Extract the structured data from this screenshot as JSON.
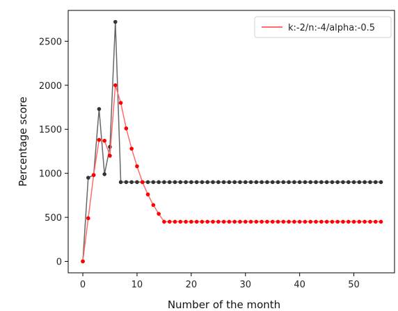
{
  "chart_data": {
    "type": "line",
    "title": "",
    "xlabel": "Number of the month",
    "ylabel": "Percentage score",
    "xlim": [
      -2.7,
      57.5
    ],
    "ylim": [
      -130,
      2850
    ],
    "xticks": [
      0,
      10,
      20,
      30,
      40,
      50
    ],
    "yticks": [
      0,
      500,
      1000,
      1500,
      2000,
      2500
    ],
    "grid": false,
    "legend_position": "top-right",
    "series": [
      {
        "name": "",
        "color": "#666666",
        "marker_color": "#333333",
        "x": [
          0,
          1,
          2,
          3,
          4,
          5,
          6,
          7,
          8,
          9,
          10,
          11,
          12,
          13,
          14,
          15,
          16,
          17,
          18,
          19,
          20,
          21,
          22,
          23,
          24,
          25,
          26,
          27,
          28,
          29,
          30,
          31,
          32,
          33,
          34,
          35,
          36,
          37,
          38,
          39,
          40,
          41,
          42,
          43,
          44,
          45,
          46,
          47,
          48,
          49,
          50,
          51,
          52,
          53,
          54,
          55
        ],
        "y": [
          0,
          950,
          980,
          1730,
          990,
          1300,
          2720,
          900,
          900,
          900,
          900,
          900,
          900,
          900,
          900,
          900,
          900,
          900,
          900,
          900,
          900,
          900,
          900,
          900,
          900,
          900,
          900,
          900,
          900,
          900,
          900,
          900,
          900,
          900,
          900,
          900,
          900,
          900,
          900,
          900,
          900,
          900,
          900,
          900,
          900,
          900,
          900,
          900,
          900,
          900,
          900,
          900,
          900,
          900,
          900,
          900
        ]
      },
      {
        "name": "k:-2/n:-4/alpha:-0.5",
        "color": "#ff6b6b",
        "marker_color": "#ff0000",
        "x": [
          0,
          1,
          2,
          3,
          4,
          5,
          6,
          7,
          8,
          9,
          10,
          11,
          12,
          13,
          14,
          15,
          16,
          17,
          18,
          19,
          20,
          21,
          22,
          23,
          24,
          25,
          26,
          27,
          28,
          29,
          30,
          31,
          32,
          33,
          34,
          35,
          36,
          37,
          38,
          39,
          40,
          41,
          42,
          43,
          44,
          45,
          46,
          47,
          48,
          49,
          50,
          51,
          52,
          53,
          54,
          55
        ],
        "y": [
          0,
          490,
          980,
          1380,
          1370,
          1200,
          2000,
          1800,
          1510,
          1280,
          1080,
          900,
          760,
          640,
          540,
          450,
          450,
          450,
          450,
          450,
          450,
          450,
          450,
          450,
          450,
          450,
          450,
          450,
          450,
          450,
          450,
          450,
          450,
          450,
          450,
          450,
          450,
          450,
          450,
          450,
          450,
          450,
          450,
          450,
          450,
          450,
          450,
          450,
          450,
          450,
          450,
          450,
          450,
          450,
          450,
          450
        ]
      }
    ]
  }
}
